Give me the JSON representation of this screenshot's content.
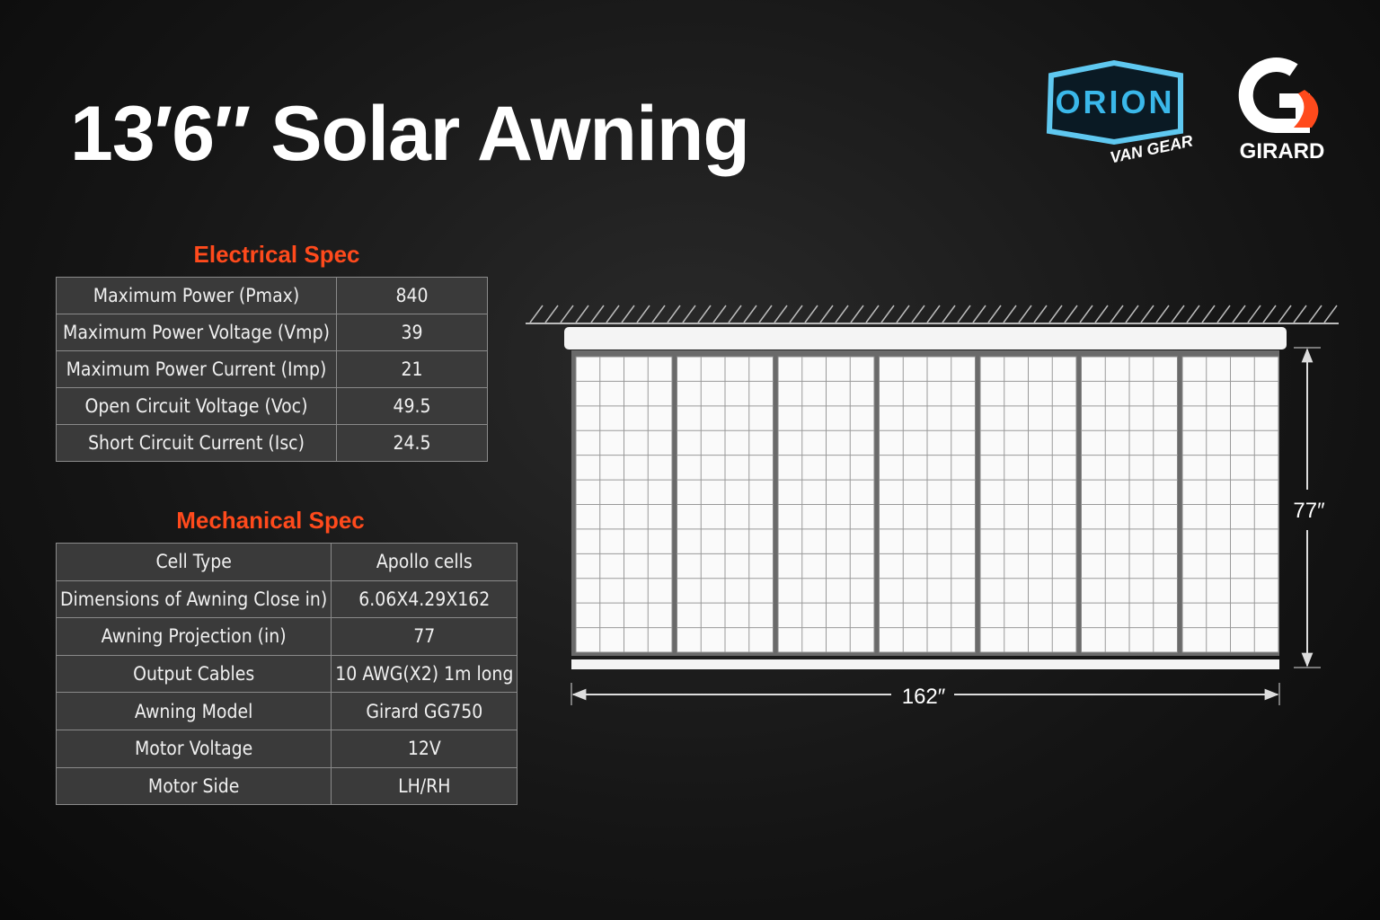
{
  "header": {
    "title": "13′6″ Solar Awning"
  },
  "logos": {
    "orion": "ORION",
    "orion_sub": "VAN GEAR",
    "girard": "GIRARD"
  },
  "electrical": {
    "heading": "Electrical Spec",
    "rows": [
      [
        "Maximum Power (Pmax)",
        "840"
      ],
      [
        "Maximum Power Voltage (Vmp)",
        "39"
      ],
      [
        "Maximum Power Current (Imp)",
        "21"
      ],
      [
        "Open Circuit Voltage (Voc)",
        "49.5"
      ],
      [
        "Short Circuit Current (Isc)",
        "24.5"
      ]
    ]
  },
  "mechanical": {
    "heading": "Mechanical Spec",
    "rows": [
      [
        "Cell Type",
        "Apollo cells"
      ],
      [
        "Dimensions of Awning Close in)",
        "6.06X4.29X162"
      ],
      [
        "Awning Projection (in)",
        "77"
      ],
      [
        "Output Cables",
        "10 AWG(X2) 1m long"
      ],
      [
        "Awning Model",
        "Girard GG750"
      ],
      [
        "Motor Voltage",
        "12V"
      ],
      [
        "Motor Side",
        "LH/RH"
      ]
    ]
  },
  "diagram": {
    "width_label": "162″",
    "height_label": "77″"
  }
}
